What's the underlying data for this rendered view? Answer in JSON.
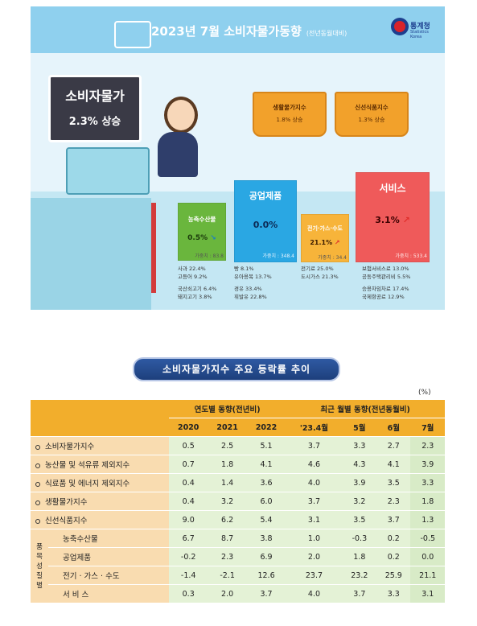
{
  "header": {
    "title": "2023년 7월 소비자물가동향",
    "title_note": "(전년동월대비)",
    "agency": "통계청",
    "agency_en": "Statistics Korea"
  },
  "headline": {
    "label": "소비자물가",
    "value": "2.3% 상승"
  },
  "baskets": [
    {
      "label": "생활물가지수",
      "value": "1.8% 상승"
    },
    {
      "label": "신선식품지수",
      "value": "1.3% 상승"
    }
  ],
  "products": [
    {
      "name": "농축수산물",
      "value": "0.5%",
      "direction": "down",
      "weight": "가중치 : 83.8",
      "color": "#6ab63d",
      "notes": [
        "사과 22.4%",
        "고등어 9.2%",
        "국산쇠고기 6.4%",
        "돼지고기 3.8%"
      ],
      "note_dirs": [
        "up",
        "up",
        "down",
        "down"
      ]
    },
    {
      "name": "공업제품",
      "value": "0.0%",
      "direction": "none",
      "weight": "가중치 : 348.4",
      "color": "#2aa7e3",
      "notes": [
        "빵 8.1%",
        "유아용복 13.7%",
        "경유 33.4%",
        "휘발유 22.8%"
      ],
      "note_dirs": [
        "up",
        "up",
        "down",
        "down"
      ]
    },
    {
      "name": "전기·가스·수도",
      "value": "21.1%",
      "direction": "up",
      "weight": "가중치 : 34.4",
      "color": "#f7b43a",
      "notes": [
        "전기료 25.0%",
        "도시가스 21.3%"
      ],
      "note_dirs": [
        "up",
        "up"
      ]
    },
    {
      "name": "서비스",
      "value": "3.1%",
      "direction": "up",
      "weight": "가중치 : 533.4",
      "color": "#ef5a5a",
      "notes": [
        "보험서비스료 13.0%",
        "공동주택관리비 5.5%",
        "승용차임차료 17.4%",
        "국제항공료 12.9%"
      ],
      "note_dirs": [
        "up",
        "up",
        "down",
        "down"
      ]
    }
  ],
  "section_title": "소비자물가지수 주요 등락률 추이",
  "unit": "(%)",
  "table": {
    "group_headers": [
      "연도별 동향(전년비)",
      "최근 월별 동향(전년동월비)"
    ],
    "columns": [
      "2020",
      "2021",
      "2022",
      "'23.4월",
      "5월",
      "6월",
      "7월"
    ],
    "rows": [
      {
        "label": "소비자물가지수",
        "values": [
          "0.5",
          "2.5",
          "5.1",
          "3.7",
          "3.3",
          "2.7",
          "2.3"
        ]
      },
      {
        "label": "농산물 및 석유류 제외지수",
        "values": [
          "0.7",
          "1.8",
          "4.1",
          "4.6",
          "4.3",
          "4.1",
          "3.9"
        ]
      },
      {
        "label": "식료품 및 에너지 제외지수",
        "values": [
          "0.4",
          "1.4",
          "3.6",
          "4.0",
          "3.9",
          "3.5",
          "3.3"
        ]
      },
      {
        "label": "생활물가지수",
        "values": [
          "0.4",
          "3.2",
          "6.0",
          "3.7",
          "3.2",
          "2.3",
          "1.8"
        ]
      },
      {
        "label": "신선식품지수",
        "values": [
          "9.0",
          "6.2",
          "5.4",
          "3.1",
          "3.5",
          "3.7",
          "1.3"
        ]
      }
    ],
    "side_label": "품목성질별",
    "sub_rows": [
      {
        "label": "농축수산물",
        "values": [
          "6.7",
          "8.7",
          "3.8",
          "1.0",
          "-0.3",
          "0.2",
          "-0.5"
        ]
      },
      {
        "label": "공업제품",
        "values": [
          "-0.2",
          "2.3",
          "6.9",
          "2.0",
          "1.8",
          "0.2",
          "0.0"
        ]
      },
      {
        "label": "전기 · 가스 · 수도",
        "values": [
          "-1.4",
          "-2.1",
          "12.6",
          "23.7",
          "23.2",
          "25.9",
          "21.1"
        ]
      },
      {
        "label": "서 비 스",
        "values": [
          "0.3",
          "2.0",
          "3.7",
          "4.0",
          "3.7",
          "3.3",
          "3.1"
        ]
      }
    ]
  }
}
